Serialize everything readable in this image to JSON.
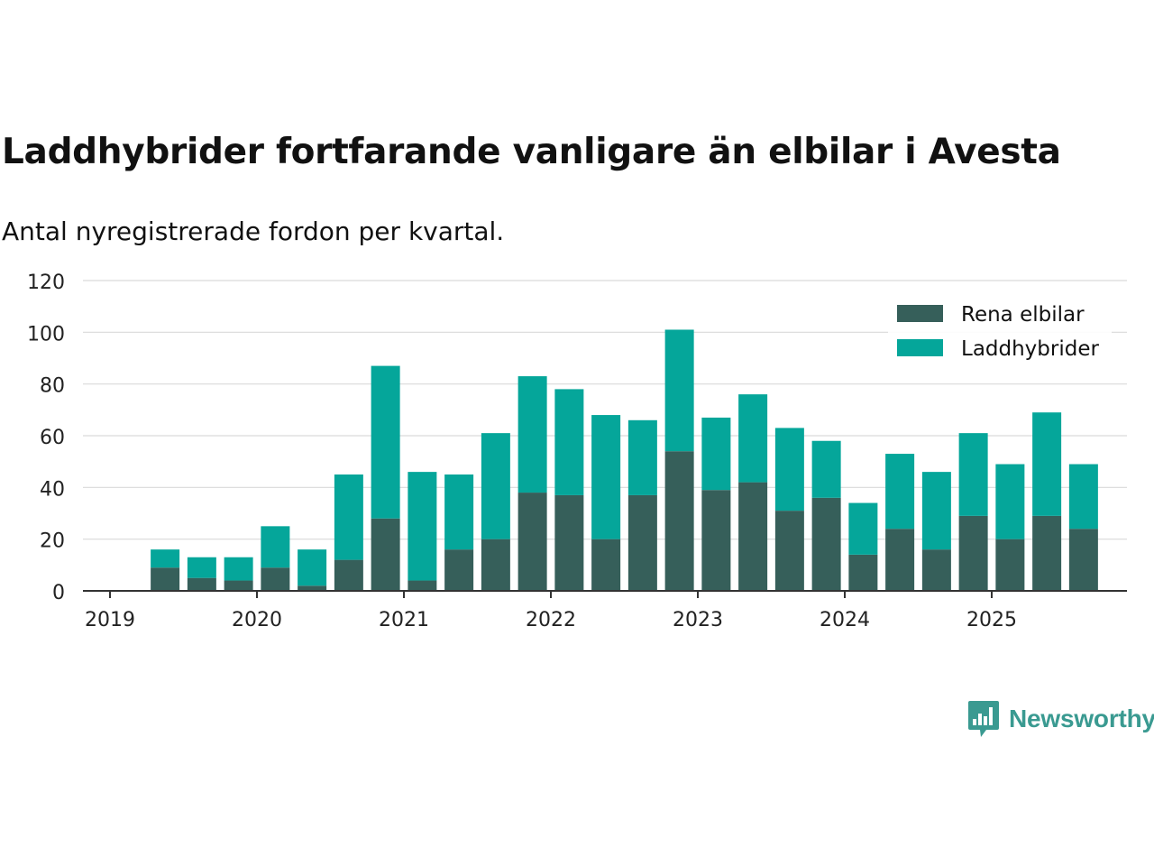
{
  "title": "Laddhybrider fortfarande vanligare än elbilar i Avesta",
  "subtitle": "Antal nyregistrerade fordon per kvartal.",
  "brand": "Newsworthy",
  "colors": {
    "elbilar": "#365f5a",
    "laddhybrider": "#05a69a",
    "brand": "#3a9a91"
  },
  "chart_data": {
    "type": "bar",
    "stacked": true,
    "categories": [
      "2019 Q2",
      "2019 Q3",
      "2019 Q4",
      "2020 Q1",
      "2020 Q2",
      "2020 Q3",
      "2020 Q4",
      "2021 Q1",
      "2021 Q2",
      "2021 Q3",
      "2021 Q4",
      "2022 Q1",
      "2022 Q2",
      "2022 Q3",
      "2022 Q4",
      "2023 Q1",
      "2023 Q2",
      "2023 Q3",
      "2023 Q4",
      "2024 Q1",
      "2024 Q2",
      "2024 Q3",
      "2024 Q4",
      "2025 Q1",
      "2025 Q2",
      "2025 Q3"
    ],
    "series": [
      {
        "name": "Rena elbilar",
        "values": [
          9,
          5,
          4,
          9,
          2,
          12,
          28,
          4,
          16,
          20,
          38,
          37,
          20,
          37,
          54,
          39,
          42,
          31,
          36,
          14,
          24,
          16,
          29,
          20,
          29,
          24
        ]
      },
      {
        "name": "Laddhybrider",
        "values": [
          7,
          8,
          9,
          16,
          14,
          33,
          59,
          42,
          29,
          41,
          45,
          41,
          48,
          29,
          47,
          28,
          34,
          32,
          22,
          20,
          29,
          30,
          32,
          29,
          40,
          25
        ]
      }
    ],
    "xticks": [
      "2019",
      "2020",
      "2021",
      "2022",
      "2023",
      "2024",
      "2025"
    ],
    "yticks": [
      0,
      20,
      40,
      60,
      80,
      100,
      120
    ],
    "ylim": [
      0,
      120
    ],
    "xlim": [
      "2019 Q1",
      "2025 Q4"
    ],
    "legend_position": "top-right",
    "grid": true
  }
}
